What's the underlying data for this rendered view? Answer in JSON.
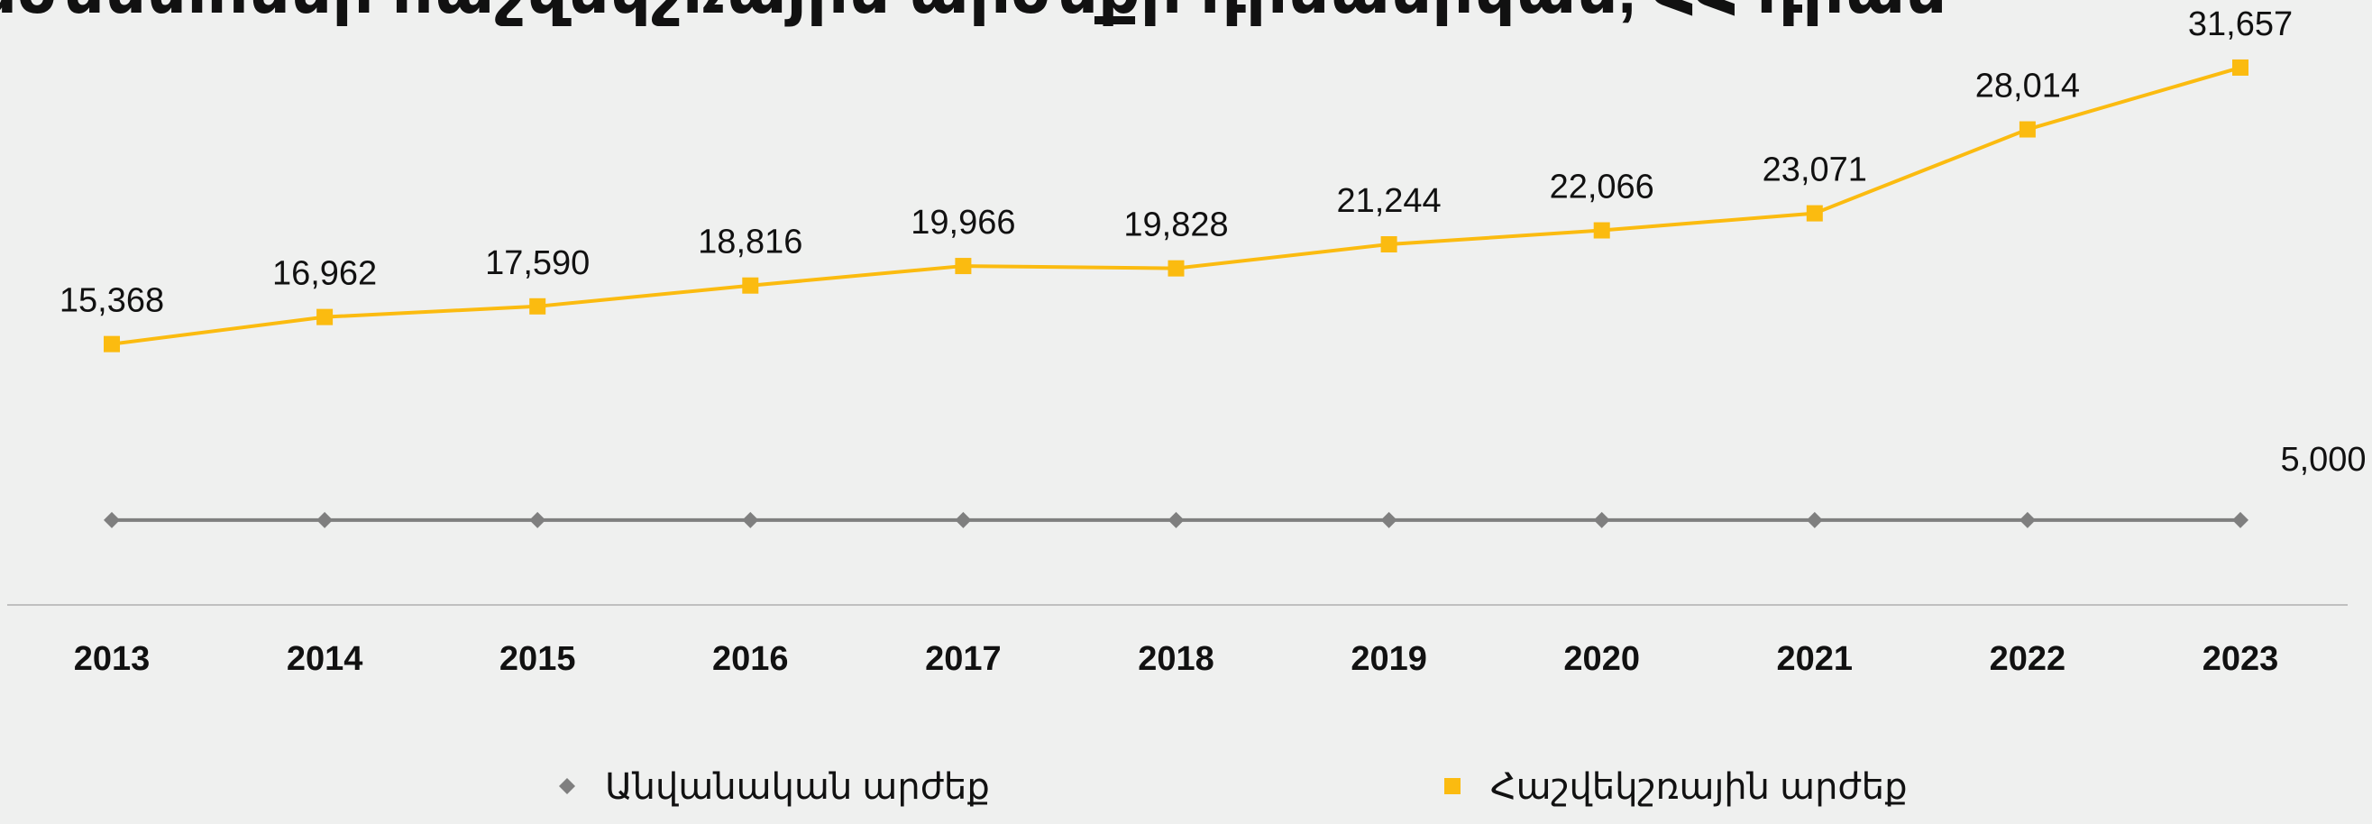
{
  "chart_data": {
    "type": "line",
    "title": "Մեկ բաժնետոմսի հաշվեկշռային արժեքի դինամիկան, ՀՀ դրամ",
    "categories": [
      "2013",
      "2014",
      "2015",
      "2016",
      "2017",
      "2018",
      "2019",
      "2020",
      "2021",
      "2022",
      "2023"
    ],
    "series": [
      {
        "name": "Անվանական արժեք",
        "color": "#7f7f7f",
        "marker": "diamond",
        "values": [
          5000,
          5000,
          5000,
          5000,
          5000,
          5000,
          5000,
          5000,
          5000,
          5000,
          5000
        ],
        "value_labels": [
          null,
          null,
          null,
          null,
          null,
          null,
          null,
          null,
          null,
          null,
          "5,000"
        ]
      },
      {
        "name": "Հաշվեկշռային արժեք",
        "color": "#fbbb10",
        "marker": "square",
        "values": [
          15368,
          16962,
          17590,
          18816,
          19966,
          19828,
          21244,
          22066,
          23071,
          28014,
          31657
        ],
        "value_labels": [
          "15,368",
          "16,962",
          "17,590",
          "18,816",
          "19,966",
          "19,828",
          "21,244",
          "22,066",
          "23,071",
          "28,014",
          "31,657"
        ]
      }
    ],
    "ylim": [
      0,
      35000
    ],
    "legend": "bottom"
  }
}
